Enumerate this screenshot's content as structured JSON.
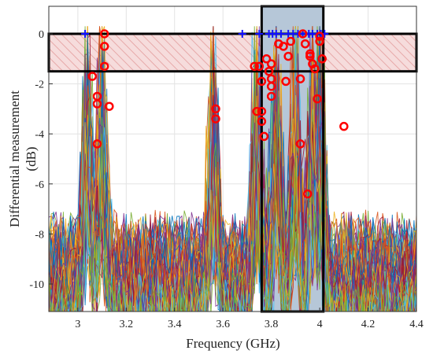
{
  "chart_data": {
    "type": "line",
    "title": "",
    "xlabel": "Frequency (GHz)",
    "ylabel_line1": "Differential measurement",
    "ylabel_line2": "(dB)",
    "xlim": [
      2.88,
      4.4
    ],
    "ylim": [
      -11.1,
      1.1
    ],
    "x_ticks": [
      3,
      3.2,
      3.4,
      3.6,
      3.8,
      4,
      4.2,
      4.4
    ],
    "x_tick_labels": [
      "3",
      "3.2",
      "3.4",
      "3.6",
      "3.8",
      "4",
      "4.2",
      "4.4"
    ],
    "y_ticks": [
      0,
      -2,
      -4,
      -6,
      -8,
      -10
    ],
    "y_tick_labels": [
      "0",
      "-2",
      "-4",
      "-6",
      "-8",
      "-10"
    ],
    "grid": true,
    "line_colors": [
      "#0072BD",
      "#D95319",
      "#EDB120",
      "#7E2F8E",
      "#77AC30",
      "#4DBEEE",
      "#A2142F"
    ],
    "noise_trace_count": 110,
    "resonant_peaks_ghz": [
      3.04,
      3.1,
      3.56,
      3.74,
      3.82,
      3.9,
      3.97,
      4.0
    ],
    "threshold_band": {
      "y_top": 0,
      "y_bottom": -1.5,
      "x_start": 2.88,
      "x_end": 4.4,
      "fill_color": "#f6dcdc",
      "hatch_color": "#e7a9a9"
    },
    "selected_band": {
      "x_start": 3.76,
      "x_end": 4.015,
      "fill_color": "#b6c7d8"
    },
    "blue_plus_markers": {
      "color": "#1010ff",
      "x": [
        3.03,
        3.68,
        3.75,
        3.79,
        3.805,
        3.82,
        3.84,
        3.87,
        3.89,
        3.91,
        3.93,
        3.955,
        3.97,
        3.99,
        4.005,
        4.02
      ]
    },
    "red_circle_markers": {
      "color": "#ff0000",
      "points": [
        [
          3.11,
          0
        ],
        [
          3.11,
          -0.5
        ],
        [
          3.06,
          -1.7
        ],
        [
          3.11,
          -1.3
        ],
        [
          3.08,
          -2.5
        ],
        [
          3.08,
          -2.8
        ],
        [
          3.13,
          -2.9
        ],
        [
          3.08,
          -4.4
        ],
        [
          3.57,
          -3.0
        ],
        [
          3.57,
          -3.4
        ],
        [
          3.73,
          -1.3
        ],
        [
          3.75,
          -1.3
        ],
        [
          3.76,
          -1.9
        ],
        [
          3.78,
          -1.0
        ],
        [
          3.79,
          -1.5
        ],
        [
          3.8,
          -1.2
        ],
        [
          3.8,
          -1.8
        ],
        [
          3.8,
          -2.1
        ],
        [
          3.8,
          -2.5
        ],
        [
          3.83,
          -0.4
        ],
        [
          3.85,
          -0.5
        ],
        [
          3.86,
          -1.9
        ],
        [
          3.87,
          -0.9
        ],
        [
          3.88,
          -0.3
        ],
        [
          3.92,
          -1.8
        ],
        [
          3.93,
          0
        ],
        [
          3.94,
          -0.4
        ],
        [
          3.96,
          -0.8
        ],
        [
          3.96,
          -0.9
        ],
        [
          3.97,
          -1.2
        ],
        [
          3.98,
          -1.4
        ],
        [
          3.99,
          -2.6
        ],
        [
          4.0,
          -0.3
        ],
        [
          4.01,
          -1.0
        ],
        [
          4.0,
          -0.1
        ],
        [
          3.74,
          -3.1
        ],
        [
          3.76,
          -3.1
        ],
        [
          3.76,
          -3.5
        ],
        [
          3.77,
          -4.1
        ],
        [
          3.92,
          -4.4
        ],
        [
          3.95,
          -6.4
        ],
        [
          4.1,
          -3.7
        ]
      ]
    }
  }
}
